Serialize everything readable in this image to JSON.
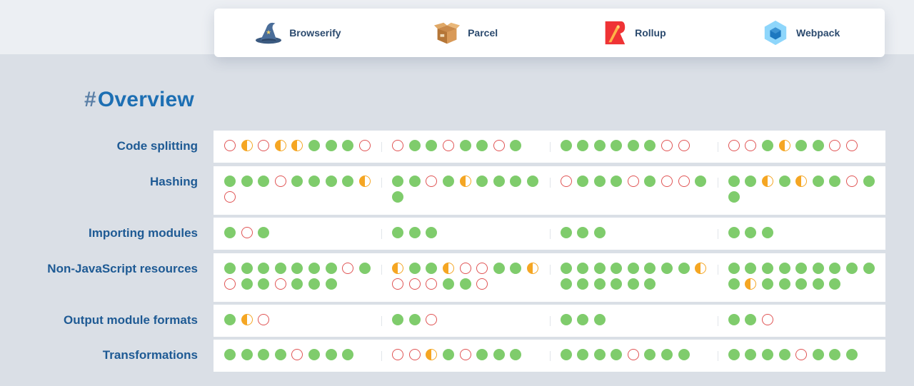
{
  "tools": [
    {
      "name": "Browserify",
      "icon": "browserify-wizard-hat-icon"
    },
    {
      "name": "Parcel",
      "icon": "parcel-box-icon"
    },
    {
      "name": "Rollup",
      "icon": "rollup-logo-icon"
    },
    {
      "name": "Webpack",
      "icon": "webpack-cube-icon"
    }
  ],
  "section": {
    "hash": "#",
    "title": "Overview"
  },
  "colors": {
    "supported": "#7fcc6c",
    "partial": "#f5a623",
    "unsupported": "#e05454",
    "title": "#1d6fb3",
    "label": "#1e5a94"
  },
  "status_legend": {
    "y": "supported",
    "p": "partial",
    "n": "unsupported"
  },
  "rows": [
    {
      "label": "Code splitting",
      "cells": [
        "npnppyyyn",
        "nyynyyny",
        "yyyyyynn",
        "nnypyynn"
      ]
    },
    {
      "label": "Hashing",
      "cells": [
        "yyynyyyypn",
        "yynypyyyyy",
        "nyyynynny",
        "yypypyynyy"
      ]
    },
    {
      "label": "Importing modules",
      "cells": [
        "yny",
        "yyy",
        "yyy",
        "yyy"
      ]
    },
    {
      "label": "Non-JavaScript resources",
      "cells": [
        "yyyyyyynynyynyyy",
        "pyypnnyypnnnyyn",
        "yyyyyyyypyyyyyy",
        "yyyyyyyyyypyyyyy"
      ]
    },
    {
      "label": "Output module formats",
      "cells": [
        "ypn",
        "yyn",
        "yyy",
        "yyn"
      ]
    },
    {
      "label": "Transformations",
      "cells": [
        "yyyynyyy",
        "nnpynyyy",
        "yyyynyyy",
        "yyyynyyy"
      ]
    }
  ]
}
